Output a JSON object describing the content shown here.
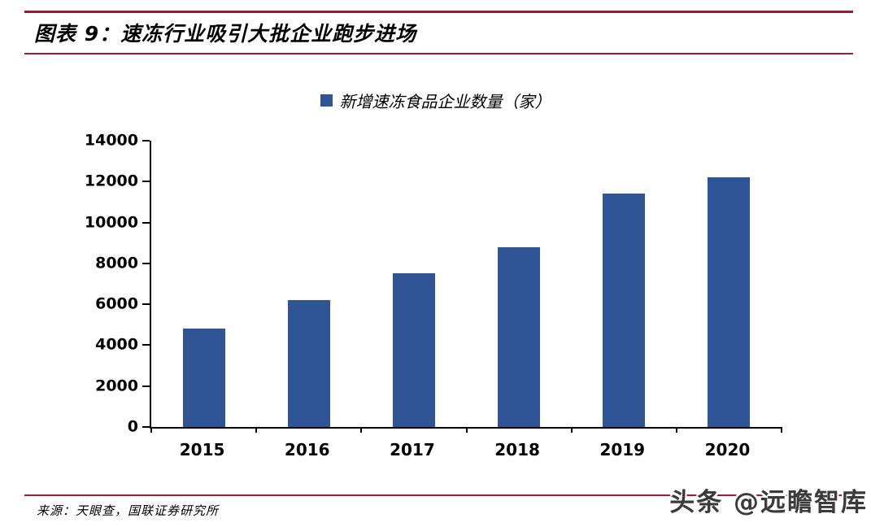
{
  "page": {
    "title": "图表 9：速冻行业吸引大批企业跑步进场",
    "source": "来源：天眼查，国联证券研究所",
    "watermark": "头条 @远瞻智库",
    "colors": {
      "accent_red": "#A01A35",
      "bar_blue": "#2F5597",
      "watermark_gray": "#3B3B3B"
    }
  },
  "chart_data": {
    "type": "bar",
    "title": "图表 9：速冻行业吸引大批企业跑步进场",
    "legend": [
      "新增速冻食品企业数量（家）"
    ],
    "legend_position": "top",
    "categories": [
      "2015",
      "2016",
      "2017",
      "2018",
      "2019",
      "2020"
    ],
    "values": [
      4800,
      6200,
      7500,
      8800,
      11400,
      12200
    ],
    "ylabel": "",
    "xlabel": "",
    "ylim": [
      0,
      14000
    ],
    "yticks": [
      0,
      2000,
      4000,
      6000,
      8000,
      10000,
      12000,
      14000
    ],
    "grid": false,
    "bar_color": "#2F5597"
  }
}
